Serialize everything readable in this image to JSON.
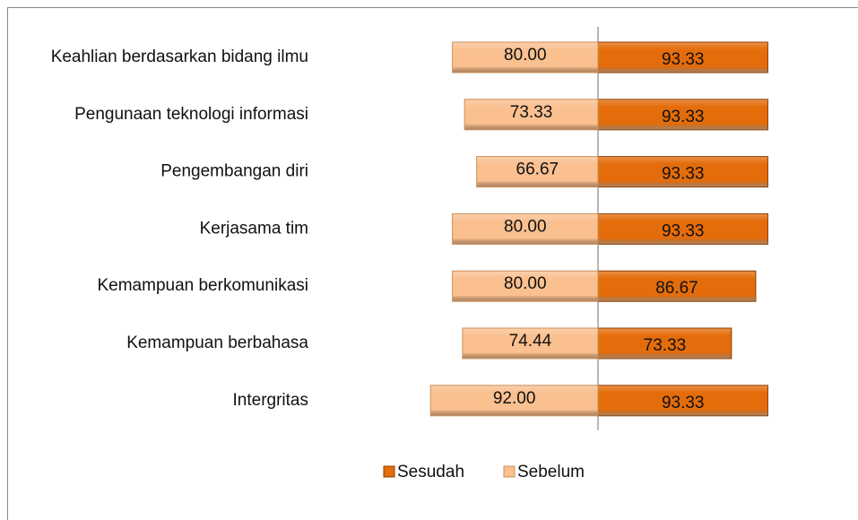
{
  "chart_data": {
    "type": "diverging-bar",
    "categories": [
      "Keahlian berdasarkan bidang ilmu",
      "Pengunaan teknologi informasi",
      "Pengembangan diri",
      "Kerjasama tim",
      "Kemampuan berkomunikasi",
      "Kemampuan berbahasa",
      "Intergritas"
    ],
    "series": [
      {
        "name": "Sesudah",
        "color": "#e46c0a",
        "values": [
          93.33,
          93.33,
          93.33,
          93.33,
          86.67,
          73.33,
          93.33
        ],
        "value_labels": [
          "93.33",
          "93.33",
          "93.33",
          "93.33",
          "86.67",
          "73.33",
          "93.33"
        ]
      },
      {
        "name": "Sebelum",
        "color": "#fac090",
        "values": [
          80,
          73.33,
          66.67,
          80,
          80,
          74.44,
          92
        ],
        "value_labels": [
          "80.00",
          "73.33",
          "66.67",
          "80.00",
          "80.00",
          "74.44",
          "92.00"
        ]
      }
    ],
    "legend": "bottom"
  }
}
